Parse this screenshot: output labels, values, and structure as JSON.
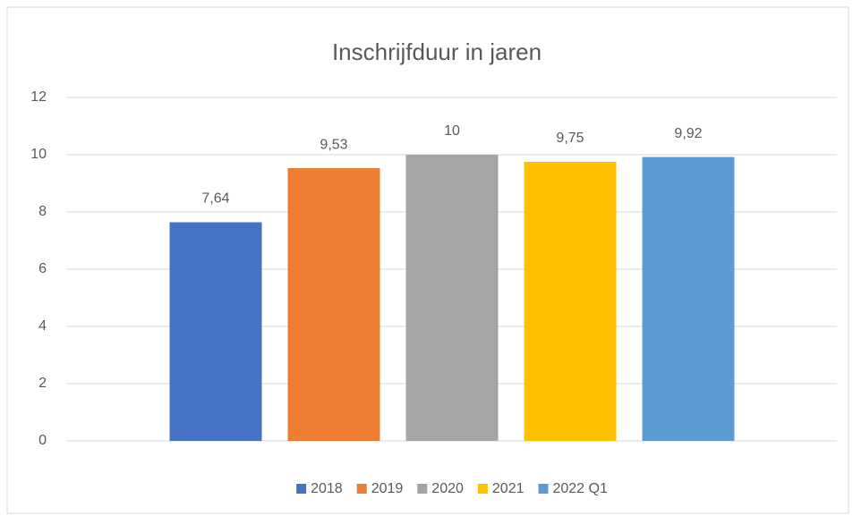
{
  "chart_data": {
    "type": "bar",
    "title": "Inschrijfduur in jaren",
    "categories": [
      null
    ],
    "series": [
      {
        "name": "2018",
        "color": "#4472c4",
        "values": [
          7.64
        ],
        "value_labels": [
          "7,64"
        ]
      },
      {
        "name": "2019",
        "color": "#ed7d31",
        "values": [
          9.53
        ],
        "value_labels": [
          "9,53"
        ]
      },
      {
        "name": "2020",
        "color": "#a5a5a5",
        "values": [
          10
        ]
      },
      {
        "name": "2021",
        "color": "#ffc000",
        "values": [
          9.75
        ],
        "value_labels": [
          "9,75"
        ]
      },
      {
        "name": "2022 Q1",
        "color": "#5b9bd5",
        "values": [
          9.92
        ],
        "value_labels": [
          "9,92"
        ]
      }
    ],
    "ylim": [
      0,
      12
    ],
    "yticks": [
      0,
      2,
      4,
      6,
      8,
      10,
      12
    ],
    "grid": true,
    "legend": "bottom"
  }
}
